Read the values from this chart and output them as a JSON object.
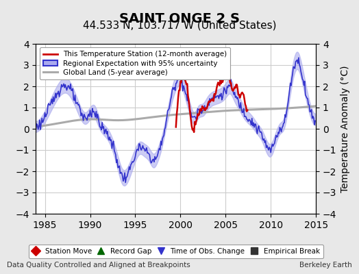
{
  "title": "SAINT ONGE 2 S",
  "subtitle": "44.533 N, 103.717 W (United States)",
  "ylabel": "Temperature Anomaly (°C)",
  "xlabel_left": "Data Quality Controlled and Aligned at Breakpoints",
  "xlabel_right": "Berkeley Earth",
  "ylim": [
    -4,
    4
  ],
  "xlim": [
    1984,
    2015
  ],
  "xticks": [
    1985,
    1990,
    1995,
    2000,
    2005,
    2010,
    2015
  ],
  "yticks": [
    -4,
    -3,
    -2,
    -1,
    0,
    1,
    2,
    3,
    4
  ],
  "bg_color": "#e8e8e8",
  "plot_bg_color": "#ffffff",
  "grid_color": "#cccccc",
  "legend1_items": [
    {
      "label": "This Temperature Station (12-month average)",
      "color": "#cc0000",
      "lw": 2.0
    },
    {
      "label": "Regional Expectation with 95% uncertainty",
      "color": "#3333cc",
      "lw": 2.0,
      "fill_color": "#aaaaee"
    },
    {
      "label": "Global Land (5-year average)",
      "color": "#aaaaaa",
      "lw": 2.5
    }
  ],
  "legend2_items": [
    {
      "label": "Station Move",
      "marker": "D",
      "color": "#cc0000"
    },
    {
      "label": "Record Gap",
      "marker": "^",
      "color": "#006600"
    },
    {
      "label": "Time of Obs. Change",
      "marker": "v",
      "color": "#3333cc"
    },
    {
      "label": "Empirical Break",
      "marker": "s",
      "color": "#333333"
    }
  ],
  "title_fontsize": 14,
  "subtitle_fontsize": 11,
  "tick_fontsize": 10,
  "label_fontsize": 9
}
